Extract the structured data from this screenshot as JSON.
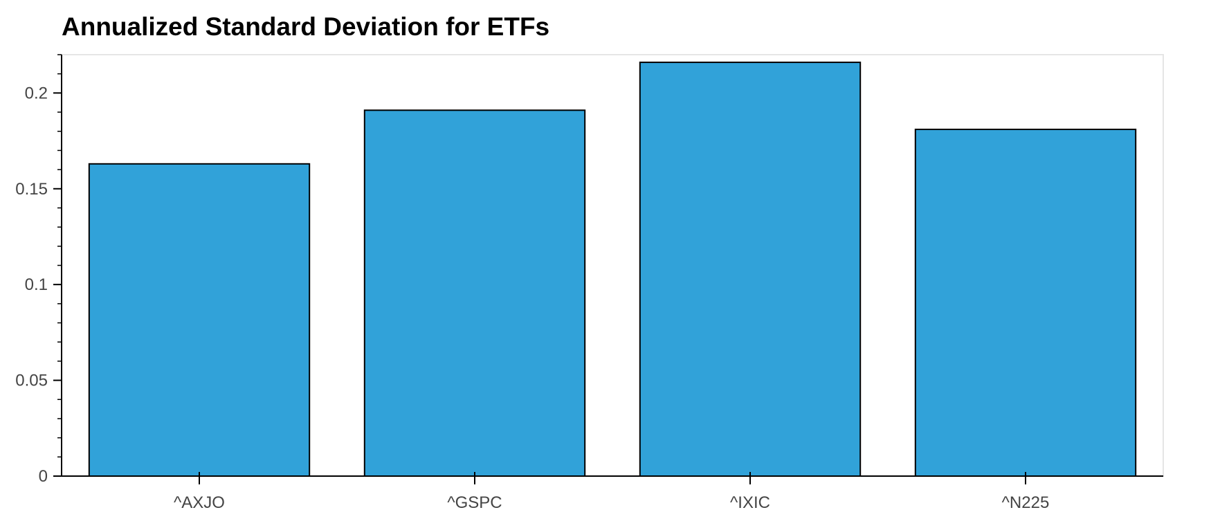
{
  "chart_data": {
    "type": "bar",
    "title": "Annualized Standard Deviation for ETFs",
    "xlabel": "",
    "ylabel": "",
    "categories": [
      "^AXJO",
      "^GSPC",
      "^IXIC",
      "^N225"
    ],
    "values": [
      0.163,
      0.191,
      0.216,
      0.181
    ],
    "ylim": [
      0,
      0.22
    ],
    "yticks": [
      0,
      0.05,
      0.1,
      0.15,
      0.2
    ],
    "ytick_labels": [
      "0",
      "0.05",
      "0.1",
      "0.15",
      "0.2"
    ],
    "grid": false,
    "legend": "none",
    "bar_color": "#31a2d9",
    "bar_edge_color": "#000000",
    "frame_color": "#e5e5e5"
  }
}
